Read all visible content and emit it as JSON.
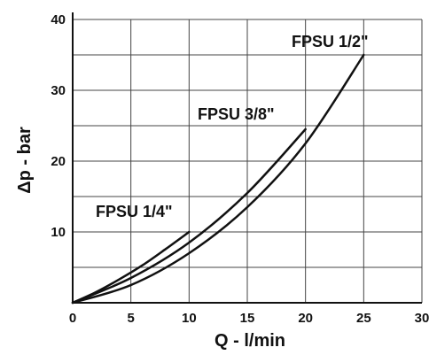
{
  "chart_data": {
    "type": "line",
    "title": "",
    "xlabel": "Q - l/min",
    "ylabel": "Δp - bar",
    "xlim": [
      0,
      30
    ],
    "ylim": [
      0,
      40
    ],
    "xticks": [
      0,
      5,
      10,
      15,
      20,
      25,
      30
    ],
    "xtick_labels": [
      "0",
      "5",
      "10",
      "15",
      "20",
      "25",
      "30"
    ],
    "yticks": [
      10,
      20,
      30,
      40
    ],
    "ytick_labels": [
      "10",
      "20",
      "30",
      "40"
    ],
    "grid": true,
    "series": [
      {
        "name": "FPSU 1/4\"",
        "x": [
          0,
          2,
          4,
          6,
          8,
          10
        ],
        "y": [
          0,
          1.5,
          3.3,
          5.3,
          7.6,
          10
        ]
      },
      {
        "name": "FPSU 3/8\"",
        "x": [
          0,
          5,
          10,
          15,
          20
        ],
        "y": [
          0,
          3.5,
          8.5,
          15.5,
          24.5
        ]
      },
      {
        "name": "FPSU 1/2\"",
        "x": [
          0,
          5,
          10,
          15,
          20,
          25
        ],
        "y": [
          0,
          2.5,
          7,
          13.5,
          22.5,
          35
        ]
      }
    ]
  }
}
